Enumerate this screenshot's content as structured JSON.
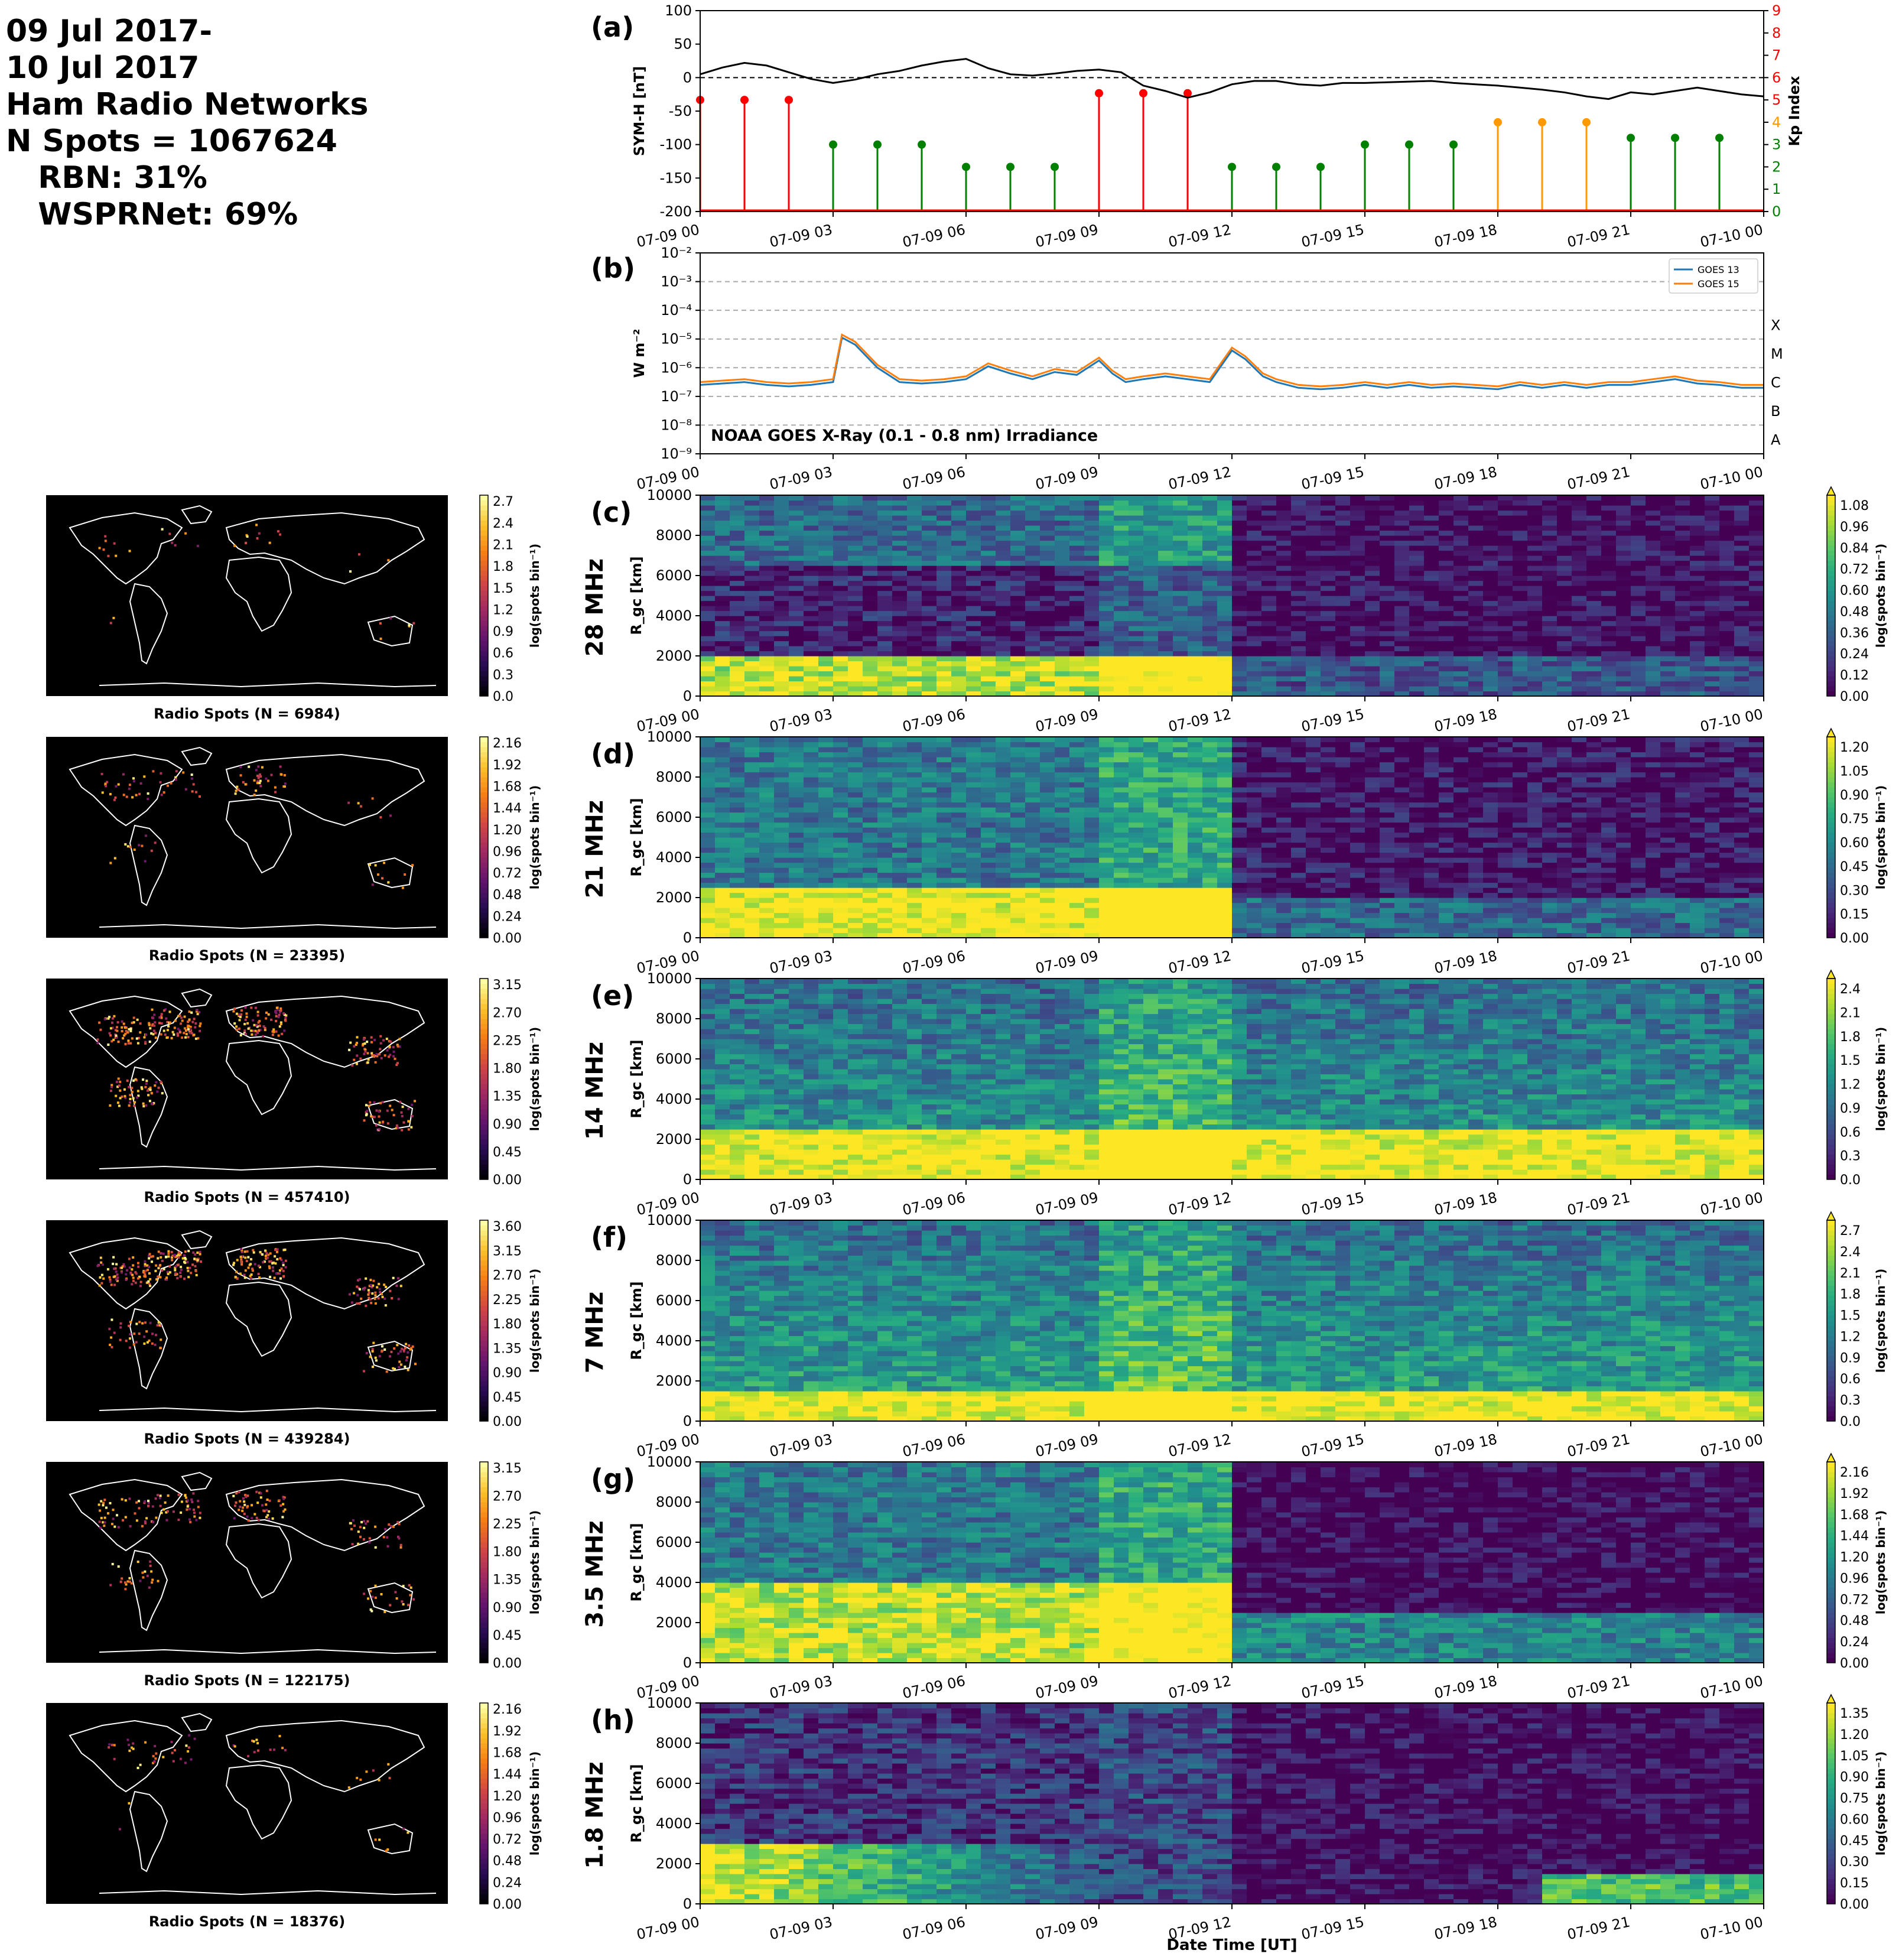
{
  "header": {
    "line1": "09 Jul 2017-",
    "line2": "10 Jul 2017",
    "line3": "Ham Radio Networks",
    "line4": "N Spots = 1067624",
    "line5": "   RBN: 31%",
    "line6": "   WSPRNet: 69%"
  },
  "time_ticks": [
    "07-09 00",
    "07-09 03",
    "07-09 06",
    "07-09 09",
    "07-09 12",
    "07-09 15",
    "07-09 18",
    "07-09 21",
    "07-10 00"
  ],
  "xlabel": "Date Time [UT]",
  "colors": {
    "sym_line": "#000000",
    "kp_low": "#008000",
    "kp_mid": "#ff9900",
    "kp_high": "#ff0000",
    "goes13": "#1f77b4",
    "goes15": "#ff7f0e"
  },
  "chart_data": [
    {
      "type": "line",
      "panel": "(a)",
      "ylabel": "SYM-H [nT]",
      "y2label": "Kp Index",
      "ylim": [
        -200,
        100
      ],
      "yticks": [
        "100",
        "50",
        "0",
        "-50",
        "-100",
        "-150",
        "-200"
      ],
      "y2lim": [
        0,
        9
      ],
      "y2ticks": [
        "0",
        "1",
        "2",
        "3",
        "4",
        "5",
        "6",
        "7",
        "8",
        "9"
      ],
      "sym_h": {
        "t_hours": [
          0,
          0.5,
          1,
          1.5,
          2,
          2.5,
          3,
          3.5,
          4,
          4.5,
          5,
          5.5,
          6,
          6.5,
          7,
          7.5,
          8,
          8.5,
          9,
          9.5,
          10,
          10.5,
          11,
          11.5,
          12,
          12.5,
          13,
          13.5,
          14,
          14.5,
          15,
          15.5,
          16,
          16.5,
          17,
          17.5,
          18,
          18.5,
          19,
          19.5,
          20,
          20.5,
          21,
          21.5,
          22,
          22.5,
          23,
          23.5,
          24
        ],
        "values": [
          5,
          15,
          22,
          18,
          8,
          -2,
          -8,
          -3,
          5,
          10,
          18,
          24,
          28,
          14,
          5,
          3,
          6,
          10,
          12,
          8,
          -12,
          -20,
          -30,
          -22,
          -10,
          -5,
          -5,
          -10,
          -12,
          -8,
          -8,
          -7,
          -6,
          -5,
          -8,
          -10,
          -12,
          -15,
          -18,
          -22,
          -28,
          -32,
          -22,
          -25,
          -20,
          -15,
          -20,
          -25,
          -28
        ]
      },
      "kp": {
        "t_hours": [
          0,
          1,
          2,
          3,
          4,
          5,
          6,
          7,
          8,
          9,
          10,
          11,
          12,
          13,
          14,
          15,
          16,
          17,
          18,
          19,
          20,
          21,
          22,
          23
        ],
        "values": [
          5,
          5,
          5,
          3,
          3,
          3,
          2,
          2,
          2,
          5.3,
          5.3,
          5.3,
          2,
          2,
          2,
          3,
          3,
          3,
          4,
          4,
          4,
          3.3,
          3.3,
          3.3
        ]
      }
    },
    {
      "type": "line",
      "panel": "(b)",
      "ylabel": "W m⁻²",
      "yscale": "log",
      "ylim": [
        1e-09,
        0.01
      ],
      "yticks": [
        "10⁻²",
        "10⁻³",
        "10⁻⁴",
        "10⁻⁵",
        "10⁻⁶",
        "10⁻⁷",
        "10⁻⁸",
        "10⁻⁹"
      ],
      "class_labels": [
        "X",
        "M",
        "C",
        "B",
        "A"
      ],
      "annotation": "NOAA GOES X-Ray (0.1 - 0.8 nm) Irradiance",
      "series": [
        {
          "name": "GOES 13",
          "t_hours": [
            0,
            0.5,
            1,
            1.5,
            2,
            2.5,
            3,
            3.2,
            3.5,
            4,
            4.5,
            5,
            5.5,
            6,
            6.5,
            7,
            7.5,
            8,
            8.5,
            9,
            9.3,
            9.6,
            10,
            10.5,
            11,
            11.5,
            12,
            12.3,
            12.7,
            13,
            13.5,
            14,
            14.5,
            15,
            15.5,
            16,
            16.5,
            17,
            17.5,
            18,
            18.5,
            19,
            19.5,
            20,
            20.5,
            21,
            21.5,
            22,
            22.5,
            23,
            23.5,
            24
          ],
          "log10": [
            -6.6,
            -6.55,
            -6.5,
            -6.6,
            -6.65,
            -6.6,
            -6.5,
            -4.95,
            -5.2,
            -6.0,
            -6.5,
            -6.55,
            -6.5,
            -6.4,
            -5.95,
            -6.2,
            -6.4,
            -6.15,
            -6.25,
            -5.75,
            -6.2,
            -6.5,
            -6.4,
            -6.3,
            -6.4,
            -6.5,
            -5.4,
            -5.7,
            -6.3,
            -6.5,
            -6.7,
            -6.75,
            -6.7,
            -6.6,
            -6.7,
            -6.6,
            -6.7,
            -6.65,
            -6.7,
            -6.75,
            -6.6,
            -6.7,
            -6.6,
            -6.7,
            -6.6,
            -6.6,
            -6.5,
            -6.4,
            -6.55,
            -6.6,
            -6.7,
            -6.7
          ]
        },
        {
          "name": "GOES 15",
          "t_hours": [
            0,
            0.5,
            1,
            1.5,
            2,
            2.5,
            3,
            3.2,
            3.5,
            4,
            4.5,
            5,
            5.5,
            6,
            6.5,
            7,
            7.5,
            8,
            8.5,
            9,
            9.3,
            9.6,
            10,
            10.5,
            11,
            11.5,
            12,
            12.3,
            12.7,
            13,
            13.5,
            14,
            14.5,
            15,
            15.5,
            16,
            16.5,
            17,
            17.5,
            18,
            18.5,
            19,
            19.5,
            20,
            20.5,
            21,
            21.5,
            22,
            22.5,
            23,
            23.5,
            24
          ],
          "log10": [
            -6.5,
            -6.45,
            -6.4,
            -6.5,
            -6.55,
            -6.5,
            -6.4,
            -4.85,
            -5.1,
            -5.9,
            -6.4,
            -6.45,
            -6.4,
            -6.3,
            -5.85,
            -6.1,
            -6.3,
            -6.05,
            -6.15,
            -5.65,
            -6.1,
            -6.4,
            -6.3,
            -6.2,
            -6.3,
            -6.4,
            -5.3,
            -5.6,
            -6.2,
            -6.4,
            -6.6,
            -6.65,
            -6.6,
            -6.5,
            -6.6,
            -6.5,
            -6.6,
            -6.55,
            -6.6,
            -6.65,
            -6.5,
            -6.6,
            -6.5,
            -6.6,
            -6.5,
            -6.5,
            -6.4,
            -6.3,
            -6.45,
            -6.5,
            -6.6,
            -6.6
          ]
        }
      ]
    },
    {
      "type": "heatmap",
      "panel": "(c)",
      "band": "28 MHz",
      "map_title": "Radio Spots (N = 6984)",
      "map_cbar_ticks": [
        "0.0",
        "0.3",
        "0.6",
        "0.9",
        "1.2",
        "1.5",
        "1.8",
        "2.1",
        "2.4",
        "2.7"
      ],
      "ylabel": "R_gc [km]",
      "ylim": [
        0,
        10000
      ],
      "yticks": [
        "0",
        "2000",
        "4000",
        "6000",
        "8000",
        "10000"
      ],
      "cbar_label": "log(spots bin⁻¹)",
      "cbar_ticks": [
        "0.00",
        "0.12",
        "0.24",
        "0.36",
        "0.48",
        "0.60",
        "0.72",
        "0.84",
        "0.96",
        "1.08"
      ]
    },
    {
      "type": "heatmap",
      "panel": "(d)",
      "band": "21 MHz",
      "map_title": "Radio Spots (N = 23395)",
      "map_cbar_ticks": [
        "0.00",
        "0.24",
        "0.48",
        "0.72",
        "0.96",
        "1.20",
        "1.44",
        "1.68",
        "1.92",
        "2.16"
      ],
      "ylabel": "R_gc [km]",
      "ylim": [
        0,
        10000
      ],
      "yticks": [
        "0",
        "2000",
        "4000",
        "6000",
        "8000",
        "10000"
      ],
      "cbar_label": "log(spots bin⁻¹)",
      "cbar_ticks": [
        "0.00",
        "0.15",
        "0.30",
        "0.45",
        "0.60",
        "0.75",
        "0.90",
        "1.05",
        "1.20"
      ]
    },
    {
      "type": "heatmap",
      "panel": "(e)",
      "band": "14 MHz",
      "map_title": "Radio Spots (N = 457410)",
      "map_cbar_ticks": [
        "0.00",
        "0.45",
        "0.90",
        "1.35",
        "1.80",
        "2.25",
        "2.70",
        "3.15"
      ],
      "ylabel": "R_gc [km]",
      "ylim": [
        0,
        10000
      ],
      "yticks": [
        "0",
        "2000",
        "4000",
        "6000",
        "8000",
        "10000"
      ],
      "cbar_label": "log(spots bin⁻¹)",
      "cbar_ticks": [
        "0.0",
        "0.3",
        "0.6",
        "0.9",
        "1.2",
        "1.5",
        "1.8",
        "2.1",
        "2.4"
      ]
    },
    {
      "type": "heatmap",
      "panel": "(f)",
      "band": "7 MHz",
      "map_title": "Radio Spots (N = 439284)",
      "map_cbar_ticks": [
        "0.00",
        "0.45",
        "0.90",
        "1.35",
        "1.80",
        "2.25",
        "2.70",
        "3.15",
        "3.60"
      ],
      "ylabel": "R_gc [km]",
      "ylim": [
        0,
        10000
      ],
      "yticks": [
        "0",
        "2000",
        "4000",
        "6000",
        "8000",
        "10000"
      ],
      "cbar_label": "log(spots bin⁻¹)",
      "cbar_ticks": [
        "0.0",
        "0.3",
        "0.6",
        "0.9",
        "1.2",
        "1.5",
        "1.8",
        "2.1",
        "2.4",
        "2.7"
      ]
    },
    {
      "type": "heatmap",
      "panel": "(g)",
      "band": "3.5 MHz",
      "map_title": "Radio Spots (N = 122175)",
      "map_cbar_ticks": [
        "0.00",
        "0.45",
        "0.90",
        "1.35",
        "1.80",
        "2.25",
        "2.70",
        "3.15"
      ],
      "ylabel": "R_gc [km]",
      "ylim": [
        0,
        10000
      ],
      "yticks": [
        "0",
        "2000",
        "4000",
        "6000",
        "8000",
        "10000"
      ],
      "cbar_label": "log(spots bin⁻¹)",
      "cbar_ticks": [
        "0.00",
        "0.24",
        "0.48",
        "0.72",
        "0.96",
        "1.20",
        "1.44",
        "1.68",
        "1.92",
        "2.16"
      ]
    },
    {
      "type": "heatmap",
      "panel": "(h)",
      "band": "1.8 MHz",
      "map_title": "Radio Spots (N = 18376)",
      "map_cbar_ticks": [
        "0.00",
        "0.24",
        "0.48",
        "0.72",
        "0.96",
        "1.20",
        "1.44",
        "1.68",
        "1.92",
        "2.16"
      ],
      "ylabel": "R_gc [km]",
      "ylim": [
        0,
        10000
      ],
      "yticks": [
        "0",
        "2000",
        "4000",
        "6000",
        "8000",
        "10000"
      ],
      "cbar_label": "log(spots bin⁻¹)",
      "cbar_ticks": [
        "0.00",
        "0.15",
        "0.30",
        "0.45",
        "0.60",
        "0.75",
        "0.90",
        "1.05",
        "1.20",
        "1.35"
      ]
    }
  ]
}
